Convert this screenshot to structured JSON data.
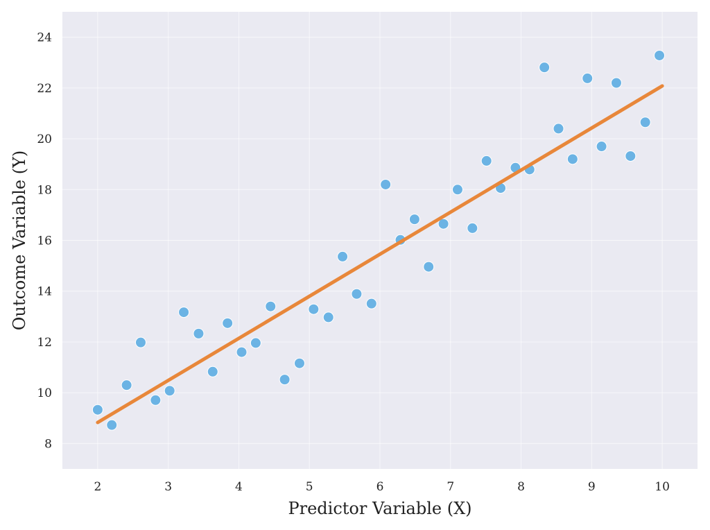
{
  "chart_data": {
    "type": "scatter",
    "title": "",
    "xlabel": "Predictor Variable (X)",
    "ylabel": "Outcome Variable (Y)",
    "xlim": [
      1.5,
      10.5
    ],
    "ylim": [
      7,
      25
    ],
    "xticks": [
      2,
      3,
      4,
      5,
      6,
      7,
      8,
      9,
      10
    ],
    "yticks": [
      8,
      10,
      12,
      14,
      16,
      18,
      20,
      22,
      24
    ],
    "grid": true,
    "colors": {
      "background": "#eaeaf2",
      "grid": "#ffffff",
      "points": "#5dade2",
      "trend_line": "#e8873a"
    },
    "series": [
      {
        "type": "scatter",
        "x": [
          2.0,
          2.2,
          2.41,
          2.61,
          2.82,
          3.02,
          3.22,
          3.43,
          3.63,
          3.84,
          4.04,
          4.24,
          4.45,
          4.65,
          4.86,
          5.06,
          5.27,
          5.47,
          5.67,
          5.88,
          6.08,
          6.29,
          6.49,
          6.69,
          6.9,
          7.1,
          7.31,
          7.51,
          7.71,
          7.92,
          8.12,
          8.33,
          8.53,
          8.73,
          8.94,
          9.14,
          9.35,
          9.55,
          9.76,
          9.96
        ],
        "y": [
          9.33,
          8.73,
          10.3,
          11.98,
          9.71,
          10.08,
          13.17,
          12.33,
          10.83,
          12.74,
          11.6,
          11.96,
          13.4,
          10.52,
          11.16,
          13.29,
          12.97,
          15.36,
          13.89,
          13.51,
          18.2,
          16.02,
          16.83,
          14.96,
          16.65,
          18.0,
          16.48,
          19.13,
          18.06,
          18.86,
          18.79,
          22.81,
          20.4,
          19.2,
          22.38,
          19.7,
          22.2,
          19.32,
          20.65,
          23.28
        ]
      },
      {
        "type": "line",
        "x": [
          2.0,
          10.0
        ],
        "y": [
          8.83,
          22.08
        ]
      }
    ]
  }
}
